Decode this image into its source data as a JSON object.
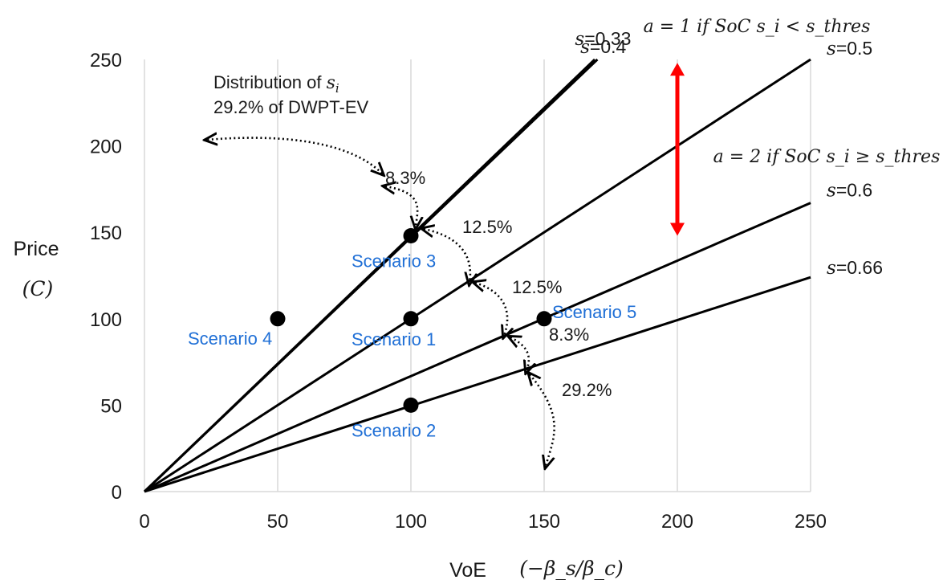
{
  "chart_data": {
    "type": "line",
    "title": "",
    "xlabel": "VoE",
    "xlabel_math": "(−β_s/β_c)",
    "ylabel": "Price",
    "ylabel_math": "(C)",
    "xlim": [
      0,
      250
    ],
    "ylim": [
      0,
      250
    ],
    "xticks": [
      0,
      50,
      100,
      150,
      200,
      250
    ],
    "yticks": [
      0,
      50,
      100,
      150,
      200,
      250
    ],
    "grid": "vertical",
    "series": [
      {
        "name": "s=0.33",
        "s_prefix": "s",
        "s_value": "=0.33",
        "x": [
          0,
          170
        ],
        "y": [
          0,
          250
        ],
        "label_anchor_x": 170
      },
      {
        "name": "s=0.4",
        "s_prefix": "s",
        "s_value": "=0.4",
        "x": [
          0,
          169
        ],
        "y": [
          0,
          250
        ],
        "label_anchor_x": 169
      },
      {
        "name": "s=0.5",
        "s_prefix": "s",
        "s_value": "=0.5",
        "x": [
          0,
          250
        ],
        "y": [
          0,
          250
        ]
      },
      {
        "name": "s=0.6",
        "s_prefix": "s",
        "s_value": "=0.6",
        "x": [
          0,
          250
        ],
        "y": [
          0,
          167
        ]
      },
      {
        "name": "s=0.66",
        "s_prefix": "s",
        "s_value": "=0.66",
        "x": [
          0,
          250
        ],
        "y": [
          0,
          124
        ]
      }
    ],
    "scenarios": [
      {
        "name": "Scenario 1",
        "x": 100,
        "y": 100
      },
      {
        "name": "Scenario 2",
        "x": 100,
        "y": 50
      },
      {
        "name": "Scenario 3",
        "x": 100,
        "y": 148
      },
      {
        "name": "Scenario 4",
        "x": 50,
        "y": 100
      },
      {
        "name": "Scenario 5",
        "x": 150,
        "y": 100
      }
    ],
    "distribution": {
      "title_prefix": "Distribution of ",
      "title_var": "s",
      "title_sub": "i",
      "shares": [
        "29.2% of DWPT-EV",
        "8.3%",
        "12.5%",
        "12.5%",
        "8.3%",
        "29.2%"
      ]
    },
    "threshold": {
      "x": 200,
      "y_range": [
        148,
        248
      ],
      "color": "#ff0000",
      "upper_label": "a = 1 if SoC s_i < s_thres",
      "lower_label": "a = 2 if SoC s_i ≥ s_thres"
    },
    "colors": {
      "line": "#000000",
      "scenario_text": "#1f6fd6",
      "arrow": "#ff0000",
      "grid": "#d9d9d9"
    }
  }
}
